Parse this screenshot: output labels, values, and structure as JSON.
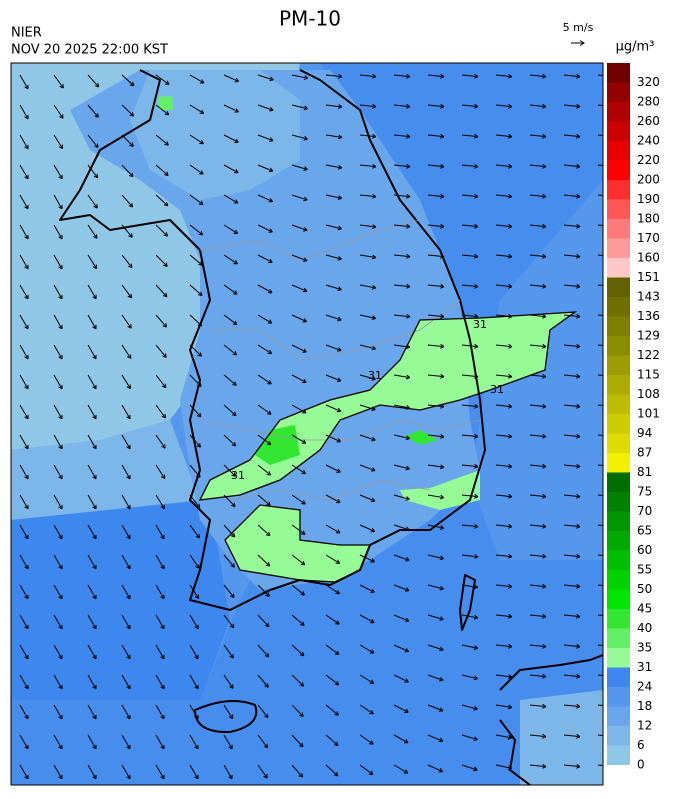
{
  "title": "PM-10",
  "agency": "NIER",
  "timestamp": "NOV 20 2025 22:00 KST",
  "wind_scale": "5 m/s",
  "colorbar": {
    "unit": "µg/m³",
    "levels": [
      0,
      6,
      12,
      18,
      24,
      31,
      35,
      40,
      45,
      50,
      55,
      60,
      65,
      70,
      75,
      81,
      87,
      94,
      101,
      108,
      115,
      122,
      129,
      136,
      143,
      151,
      160,
      170,
      180,
      190,
      200,
      220,
      240,
      260,
      280,
      320
    ],
    "colors": [
      "#90c6e6",
      "#7db7ea",
      "#6aa6ec",
      "#5697ee",
      "#3d87ef",
      "#96fa96",
      "#64f064",
      "#32e632",
      "#00e600",
      "#00d200",
      "#00be00",
      "#00aa00",
      "#009600",
      "#008200",
      "#006e00",
      "#f0f000",
      "#dcdc00",
      "#cccc00",
      "#bcbc00",
      "#acac00",
      "#9c9c00",
      "#8c8c00",
      "#7e7e00",
      "#707000",
      "#626200",
      "#ffc8c8",
      "#ff9a9a",
      "#ff7a7a",
      "#ff5656",
      "#ff2e2e",
      "#ff0000",
      "#e60000",
      "#cc0000",
      "#b00000",
      "#940000",
      "#6e0000"
    ]
  },
  "contour_labels": [
    "31",
    "31",
    "31",
    "31"
  ]
}
